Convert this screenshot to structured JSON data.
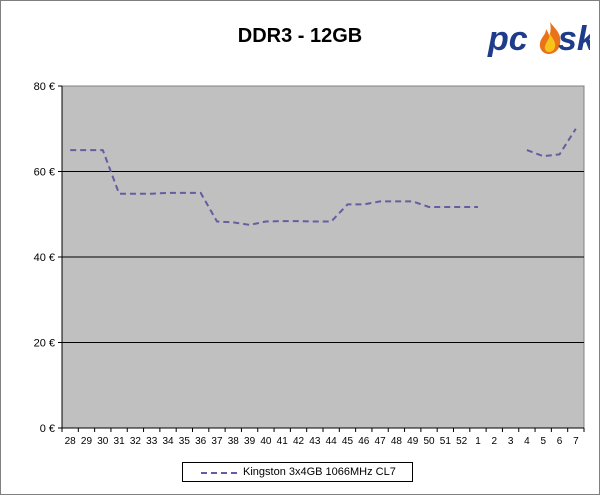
{
  "logo": {
    "text_a": "pc",
    "text_b": "sk"
  },
  "chart_data": {
    "type": "line",
    "title": "DDR3 - 12GB",
    "xlabel": "",
    "ylabel": "",
    "categories": [
      "28",
      "29",
      "30",
      "31",
      "32",
      "33",
      "34",
      "35",
      "36",
      "37",
      "38",
      "39",
      "40",
      "41",
      "42",
      "43",
      "44",
      "45",
      "46",
      "47",
      "48",
      "49",
      "50",
      "51",
      "52",
      "1",
      "2",
      "3",
      "4",
      "5",
      "6",
      "7"
    ],
    "series": [
      {
        "name": "Kingston 3x4GB 1066MHz CL7",
        "color": "#6a5aa0",
        "style": "dashed",
        "values": [
          65,
          65,
          65,
          54.8,
          54.8,
          54.8,
          55,
          55,
          55,
          48.3,
          48.1,
          47.5,
          48.3,
          48.4,
          48.4,
          48.3,
          48.3,
          52.3,
          52.3,
          53,
          53,
          53,
          51.7,
          51.7,
          51.7,
          51.7,
          null,
          null,
          65,
          63.6,
          64,
          70
        ]
      }
    ],
    "ylim": [
      0,
      80
    ],
    "y_ticks": [
      0,
      20,
      40,
      60,
      80
    ],
    "y_tick_labels": [
      "0 €",
      "20 €",
      "40 €",
      "60 €",
      "80 €"
    ],
    "grid": true,
    "plot_background": "#c0c0c0",
    "legend": "bottom-center"
  }
}
